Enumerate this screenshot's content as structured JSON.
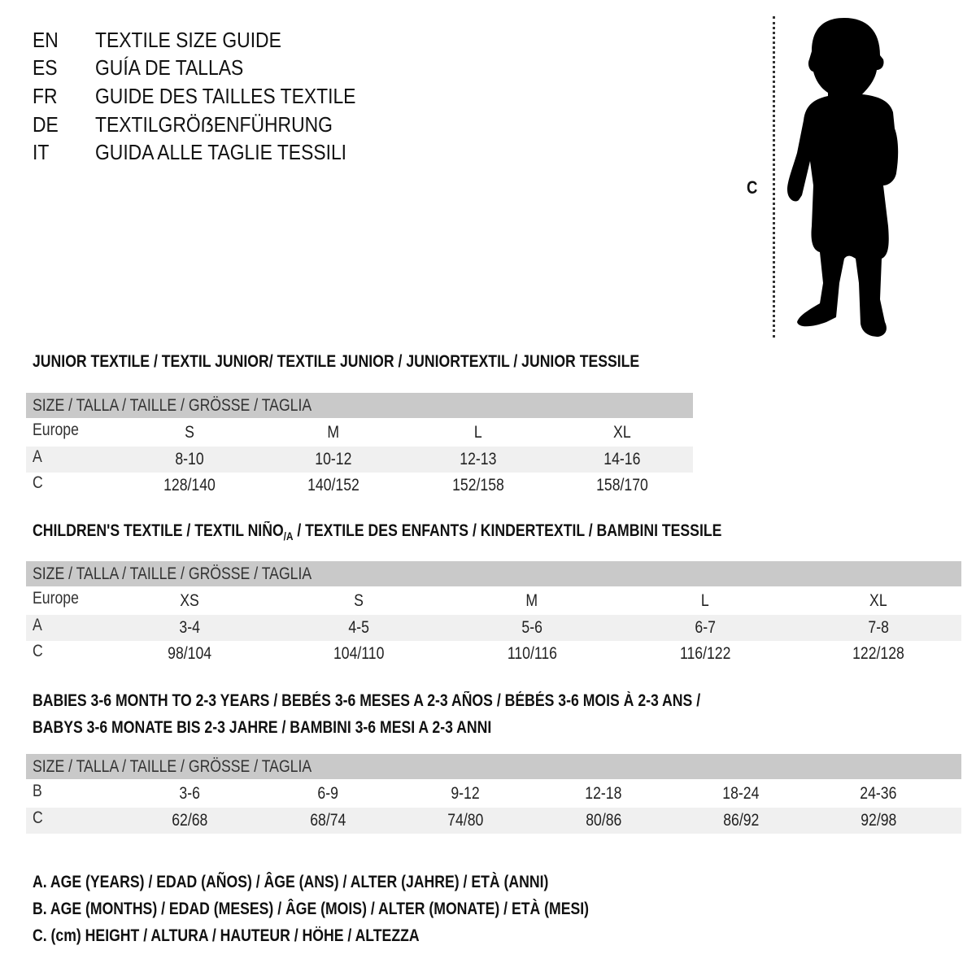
{
  "titles": [
    {
      "code": "EN",
      "text": "TEXTILE SIZE GUIDE"
    },
    {
      "code": "ES",
      "text": "GUÍA DE TALLAS"
    },
    {
      "code": "FR",
      "text": "GUIDE DES TAILLES TEXTILE"
    },
    {
      "code": "DE",
      "text": "TEXTILGRÖẞENFÜHRUNG"
    },
    {
      "code": "IT",
      "text": "GUIDA ALLE TAGLIE TESSILI"
    }
  ],
  "figure": {
    "measure_label": "C",
    "icon": "child-silhouette"
  },
  "colors": {
    "header_bg": "#c9c9c9",
    "stripe_bg": "#f0f0f0"
  },
  "size_header": "SIZE / TALLA / TAILLE / GRÖSSE / TAGLIA",
  "junior": {
    "heading": "JUNIOR TEXTILE / TEXTIL JUNIOR/ TEXTILE JUNIOR / JUNIORTEXTIL / JUNIOR TESSILE",
    "rows": [
      {
        "label": "Europe",
        "values": [
          "S",
          "M",
          "L",
          "XL"
        ]
      },
      {
        "label": "A",
        "values": [
          "8-10",
          "10-12",
          "12-13",
          "14-16"
        ]
      },
      {
        "label": "C",
        "values": [
          "128/140",
          "140/152",
          "152/158",
          "158/170"
        ]
      }
    ]
  },
  "children": {
    "heading_pre": "CHILDREN'S TEXTILE / TEXTIL NIÑO",
    "heading_sub": "/A",
    "heading_post": " / TEXTILE DES ENFANTS / KINDERTEXTIL / BAMBINI TESSILE",
    "rows": [
      {
        "label": "Europe",
        "values": [
          "XS",
          "S",
          "M",
          "L",
          "XL"
        ]
      },
      {
        "label": "A",
        "values": [
          "3-4",
          "4-5",
          "5-6",
          "6-7",
          "7-8"
        ]
      },
      {
        "label": "C",
        "values": [
          "98/104",
          "104/110",
          "110/116",
          "116/122",
          "122/128"
        ]
      }
    ]
  },
  "babies": {
    "heading_line1": "BABIES 3-6 MONTH TO 2-3 YEARS / BEBÉS 3-6 MESES A 2-3 AÑOS / BÉBÉS 3-6 MOIS À 2-3 ANS /",
    "heading_line2": "BABYS 3-6 MONATE BIS 2-3 JAHRE / BAMBINI 3-6 MESI A 2-3 ANNI",
    "rows": [
      {
        "label": "B",
        "values": [
          "3-6",
          "6-9",
          "9-12",
          "12-18",
          "18-24",
          "24-36"
        ]
      },
      {
        "label": "C",
        "values": [
          "62/68",
          "68/74",
          "74/80",
          "80/86",
          "86/92",
          "92/98"
        ]
      }
    ]
  },
  "legend": [
    "A. AGE (YEARS) / EDAD (AÑOS) / ÂGE (ANS) / ALTER (JAHRE) / ETÀ (ANNI)",
    "B. AGE (MONTHS) / EDAD (MESES) / ÂGE (MOIS) / ALTER (MONATE) / ETÀ (MESI)",
    "C. (cm) HEIGHT / ALTURA / HAUTEUR / HÖHE / ALTEZZA"
  ]
}
